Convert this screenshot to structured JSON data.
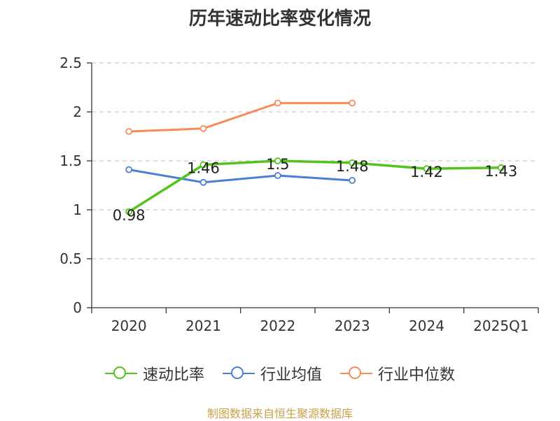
{
  "chart_data": {
    "type": "line",
    "title": "历年速动比率变化情况",
    "categories": [
      "2020",
      "2021",
      "2022",
      "2023",
      "2024",
      "2025Q1"
    ],
    "ylim": [
      0,
      2.5
    ],
    "yticks": [
      "0",
      "0.5",
      "1",
      "1.5",
      "2",
      "2.5"
    ],
    "grid": true,
    "legend_position": "bottom",
    "series": [
      {
        "name": "速动比率",
        "color": "#52c41a",
        "values": [
          0.98,
          1.46,
          1.5,
          1.48,
          1.42,
          1.43
        ],
        "labels": [
          "0.98",
          "1.46",
          "1.5",
          "1.48",
          "1.42",
          "1.43"
        ],
        "show_labels": true
      },
      {
        "name": "行业均值",
        "color": "#4a7fd6",
        "values": [
          1.41,
          1.28,
          1.35,
          1.3,
          null,
          null
        ],
        "show_labels": false
      },
      {
        "name": "行业中位数",
        "color": "#f78b5a",
        "values": [
          1.8,
          1.83,
          2.09,
          2.09,
          null,
          null
        ],
        "show_labels": false
      }
    ]
  },
  "source_note": "制图数据来自恒生聚源数据库"
}
